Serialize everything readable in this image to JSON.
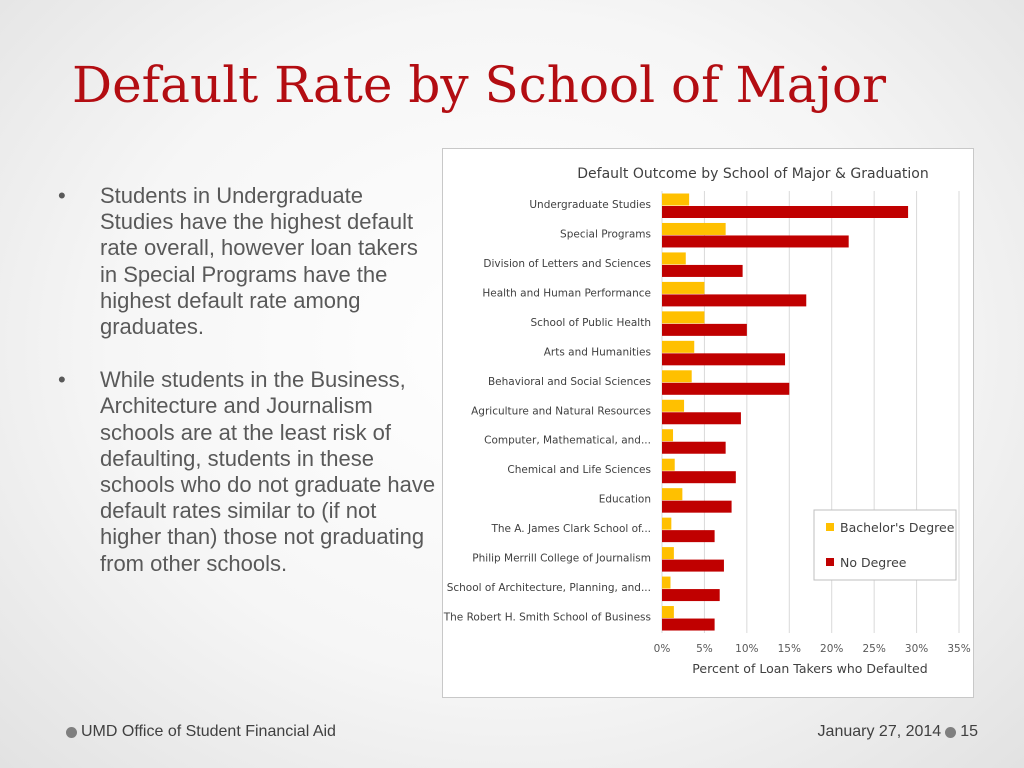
{
  "slide": {
    "title": "Default Rate by School of Major",
    "bullets": [
      "Students in Undergraduate Studies have the highest default rate overall, however loan takers in Special Programs have the highest default rate among graduates.",
      "While students in the Business, Architecture and Journalism schools are at the least risk of defaulting, students in these schools who do not graduate have default rates similar to (if not higher than) those not graduating from other schools."
    ],
    "bullet_marker": "•",
    "footer": {
      "left": "UMD Office of Student Financial Aid",
      "date": "January 27, 2014",
      "page": "15"
    }
  },
  "chart_data": {
    "type": "bar",
    "orientation": "horizontal",
    "title": "Default Outcome by School of Major & Graduation",
    "xlabel": "Percent of Loan Takers who Defaulted",
    "ylabel": "",
    "xlim": [
      0,
      35
    ],
    "x_ticks": [
      "0%",
      "5%",
      "10%",
      "15%",
      "20%",
      "25%",
      "30%",
      "35%"
    ],
    "grid": true,
    "legend_position": "right",
    "categories": [
      "Undergraduate Studies",
      "Special Programs",
      "Division of Letters and Sciences",
      "Health and Human Performance",
      "School of Public Health",
      "Arts and Humanities",
      "Behavioral and Social Sciences",
      "Agriculture and Natural Resources",
      "Computer, Mathematical, and...",
      "Chemical and Life Sciences",
      "Education",
      "The A. James Clark School of...",
      "Philip Merrill College of Journalism",
      "School of Architecture, Planning, and...",
      "The Robert H. Smith School of Business"
    ],
    "series": [
      {
        "name": "Bachelor's Degree",
        "color": "#ffc000",
        "values": [
          3.2,
          7.5,
          2.8,
          5.0,
          5.0,
          3.8,
          3.5,
          2.6,
          1.3,
          1.5,
          2.4,
          1.1,
          1.4,
          1.0,
          1.4
        ]
      },
      {
        "name": "No Degree",
        "color": "#c00000",
        "values": [
          29.0,
          22.0,
          9.5,
          17.0,
          10.0,
          14.5,
          15.0,
          9.3,
          7.5,
          8.7,
          8.2,
          6.2,
          7.3,
          6.8,
          6.2
        ]
      }
    ]
  }
}
